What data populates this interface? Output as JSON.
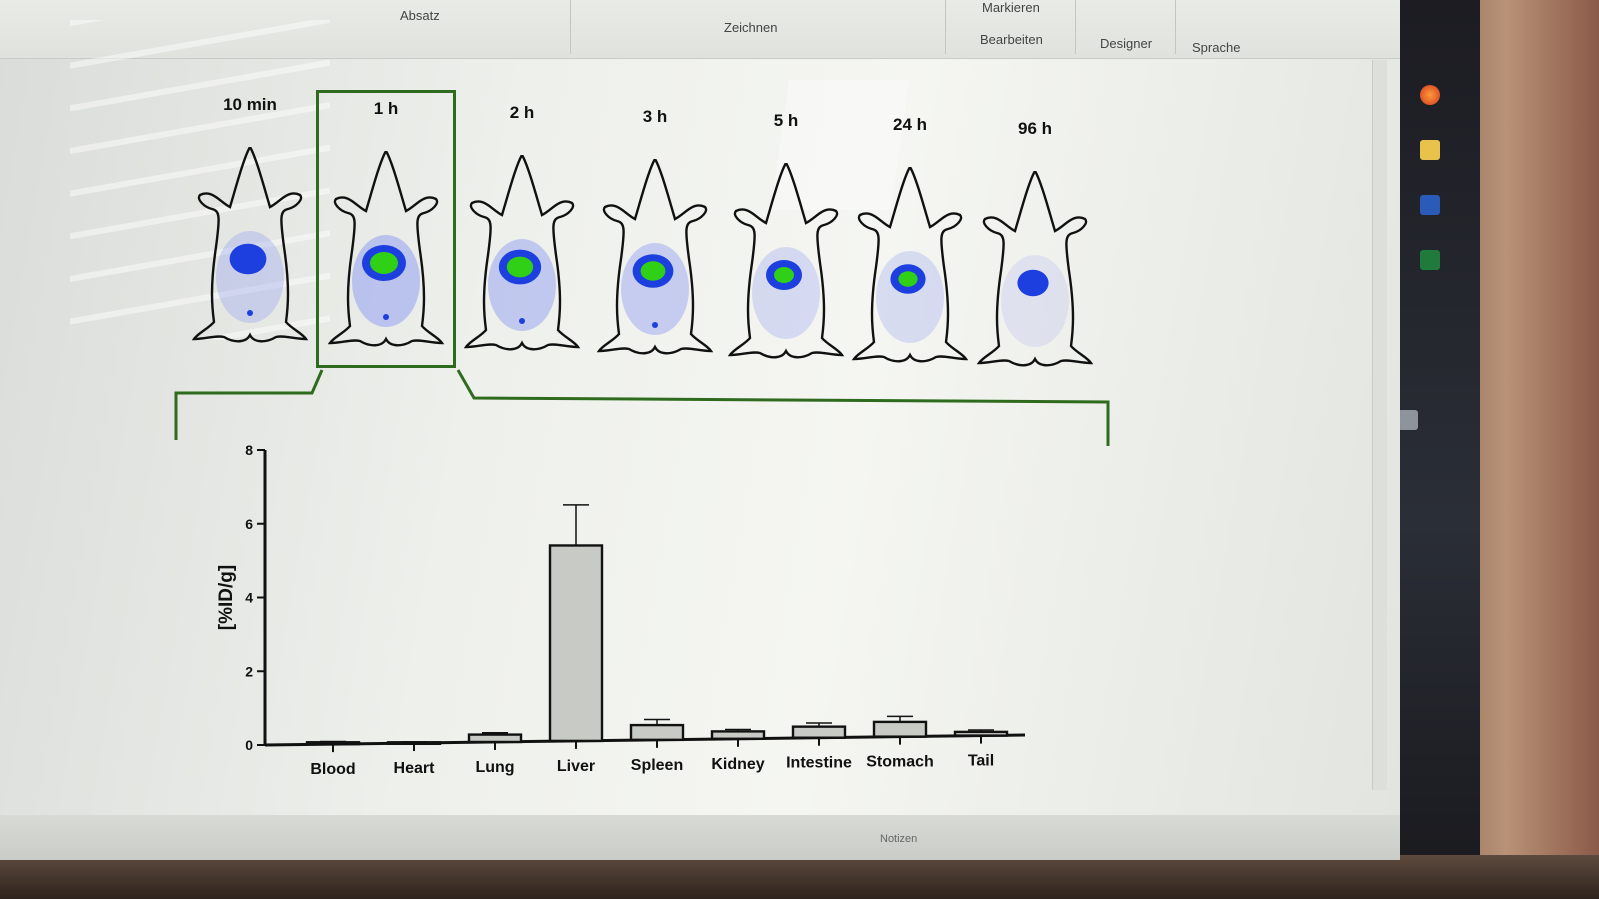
{
  "ribbon": {
    "absatz": "Absatz",
    "zeichnen": "Zeichnen",
    "markieren": "Markieren",
    "bearbeiten": "Bearbeiten",
    "designer": "Designer",
    "sprache": "Sprache"
  },
  "timepoints": [
    "10 min",
    "1 h",
    "2 h",
    "3 h",
    "5 h",
    "24 h",
    "96 h"
  ],
  "highlighted_timepoint": "1 h",
  "signal_colors": {
    "high": "#2fd016",
    "mid": "#1e3fe0",
    "low": "#9aa6f0"
  },
  "chart_data": {
    "type": "bar",
    "categories": [
      "Blood",
      "Heart",
      "Lung",
      "Liver",
      "Spleen",
      "Kidney",
      "Intestine",
      "Stomach",
      "Tail"
    ],
    "values": [
      0.05,
      0.02,
      0.2,
      5.3,
      0.4,
      0.2,
      0.3,
      0.4,
      0.1
    ],
    "errors": [
      0.02,
      0.01,
      0.05,
      1.1,
      0.15,
      0.05,
      0.1,
      0.15,
      0.05
    ],
    "ylabel": "[%ID/g]",
    "ylim": [
      0,
      8
    ],
    "yticks": [
      0,
      2,
      4,
      6,
      8
    ],
    "bar_color": "#c8cac6"
  },
  "statusbar": {
    "notes": "Notizen"
  }
}
